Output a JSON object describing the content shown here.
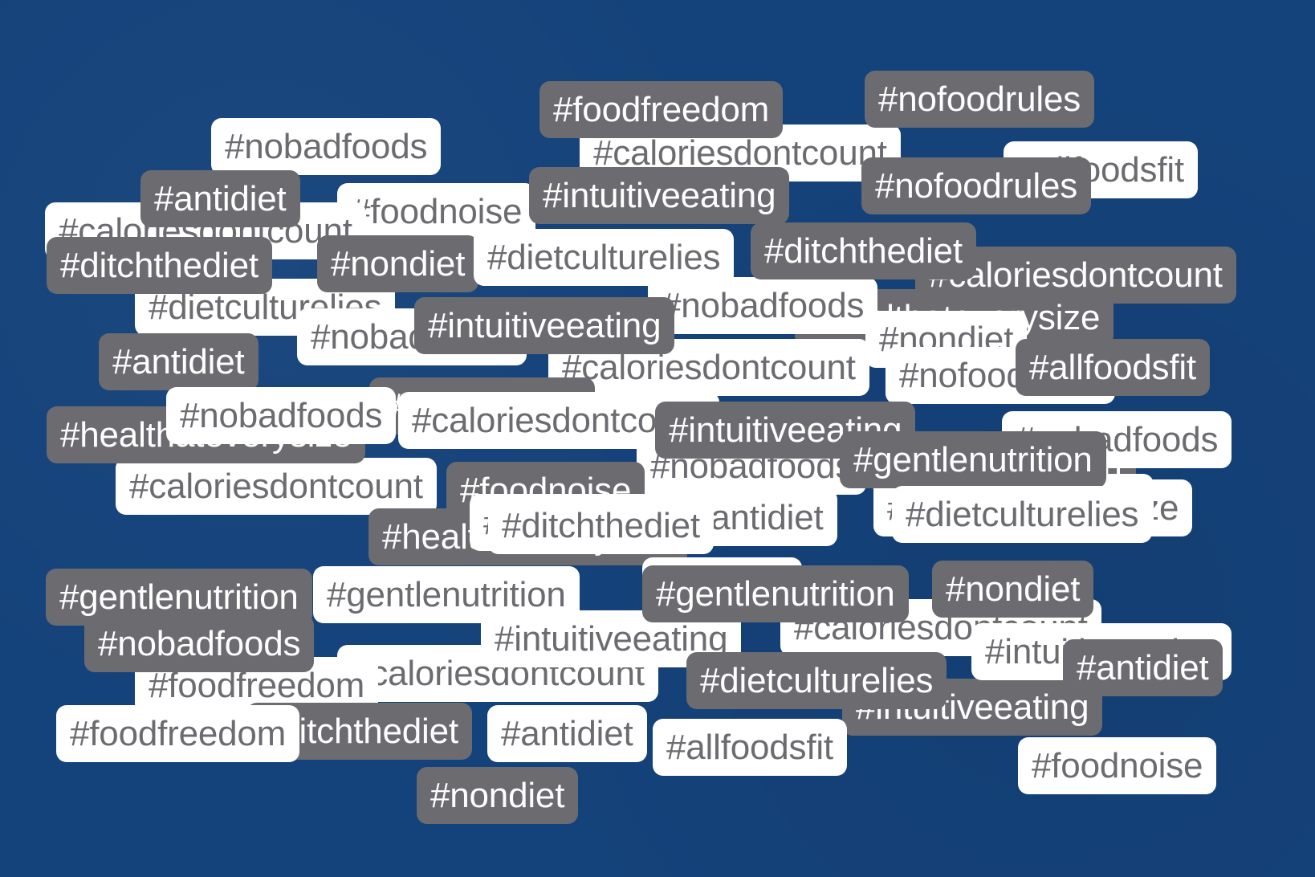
{
  "colors": {
    "background": "#14427a",
    "dark_tag_bg": "#6b6b70",
    "dark_tag_text": "#ffffff",
    "light_tag_bg": "#ffffff",
    "light_tag_text": "#6b6b70"
  },
  "tags": [
    {
      "text": "#nobadfoods",
      "style": "light"
    },
    {
      "text": "#caloriesdontcount",
      "style": "light"
    },
    {
      "text": "#allfoodsfit",
      "style": "light"
    },
    {
      "text": "#foodnoise",
      "style": "light"
    },
    {
      "text": "#caloriesdontcount",
      "style": "light"
    },
    {
      "text": "#dietculturelies",
      "style": "light"
    },
    {
      "text": "#caloriesdontcount",
      "style": "dark"
    },
    {
      "text": "#nondiet",
      "style": "dark"
    },
    {
      "text": "#healthateverysize",
      "style": "dark"
    },
    {
      "text": "#nobadfoods",
      "style": "light"
    },
    {
      "text": "#nondiet",
      "style": "light"
    },
    {
      "text": "#dietculturelies",
      "style": "light"
    },
    {
      "text": "#caloriesdontcount",
      "style": "light"
    },
    {
      "text": "#nobadfoods",
      "style": "light"
    },
    {
      "text": "#nofoodrules",
      "style": "light"
    },
    {
      "text": "#ditchthediet",
      "style": "dark"
    },
    {
      "text": "#caloriesdontcount",
      "style": "light"
    },
    {
      "text": "#nobadfoods",
      "style": "light"
    },
    {
      "text": "#gentlenutrition",
      "style": "dark"
    },
    {
      "text": "#caloriesdontcount",
      "style": "light"
    },
    {
      "text": "#foodnoise",
      "style": "dark"
    },
    {
      "text": "#healthateverysize",
      "style": "light"
    },
    {
      "text": "#nobadfoods",
      "style": "light"
    },
    {
      "text": "#healthateverysize",
      "style": "dark"
    },
    {
      "text": "#antidiet",
      "style": "light"
    },
    {
      "text": "#gentlenutrition",
      "style": "light"
    },
    {
      "text": "#gentlenutrition",
      "style": "dark"
    },
    {
      "text": "#caloriesdontcount",
      "style": "light"
    },
    {
      "text": "#foodfreedom",
      "style": "light"
    },
    {
      "text": "#intuitiveeating",
      "style": "light"
    },
    {
      "text": "#caloriesdontcount",
      "style": "light"
    },
    {
      "text": "#ditchthediet",
      "style": "dark"
    },
    {
      "text": "#foodnoise",
      "style": "light"
    },
    {
      "text": "#healthateverysize",
      "style": "dark"
    },
    {
      "text": "#foodfreedom",
      "style": "dark"
    },
    {
      "text": "#nofoodrules",
      "style": "dark"
    },
    {
      "text": "#nofoodrules",
      "style": "dark"
    },
    {
      "text": "#intuitiveeating",
      "style": "dark"
    },
    {
      "text": "#antidiet",
      "style": "dark"
    },
    {
      "text": "#ditchthediet",
      "style": "dark"
    },
    {
      "text": "#dietculturelies",
      "style": "light"
    },
    {
      "text": "#ditchthediet",
      "style": "dark"
    },
    {
      "text": "#intuitiveeating",
      "style": "dark"
    },
    {
      "text": "#antidiet",
      "style": "dark"
    },
    {
      "text": "#nobadfoods",
      "style": "light"
    },
    {
      "text": "#allfoodsfit",
      "style": "dark"
    },
    {
      "text": "#intuitiveeating",
      "style": "dark"
    },
    {
      "text": "#gentlenutrition",
      "style": "dark"
    },
    {
      "text": "#nobadfoods",
      "style": "light"
    },
    {
      "text": "#dietculturelies",
      "style": "light"
    },
    {
      "text": "#ditchthediet",
      "style": "light"
    },
    {
      "text": "#antidiet",
      "style": "light"
    },
    {
      "text": "#nondiet",
      "style": "dark"
    },
    {
      "text": "#gentlenutrition",
      "style": "dark"
    },
    {
      "text": "#intuitiveeating",
      "style": "dark"
    },
    {
      "text": "#intuitiveeating",
      "style": "light"
    },
    {
      "text": "#nobadfoods",
      "style": "dark"
    },
    {
      "text": "#antidiet",
      "style": "dark"
    },
    {
      "text": "#dietculturelies",
      "style": "dark"
    },
    {
      "text": "#foodfreedom",
      "style": "light"
    },
    {
      "text": "#antidiet",
      "style": "light"
    },
    {
      "text": "#allfoodsfit",
      "style": "light"
    },
    {
      "text": "#nondiet",
      "style": "dark"
    }
  ]
}
